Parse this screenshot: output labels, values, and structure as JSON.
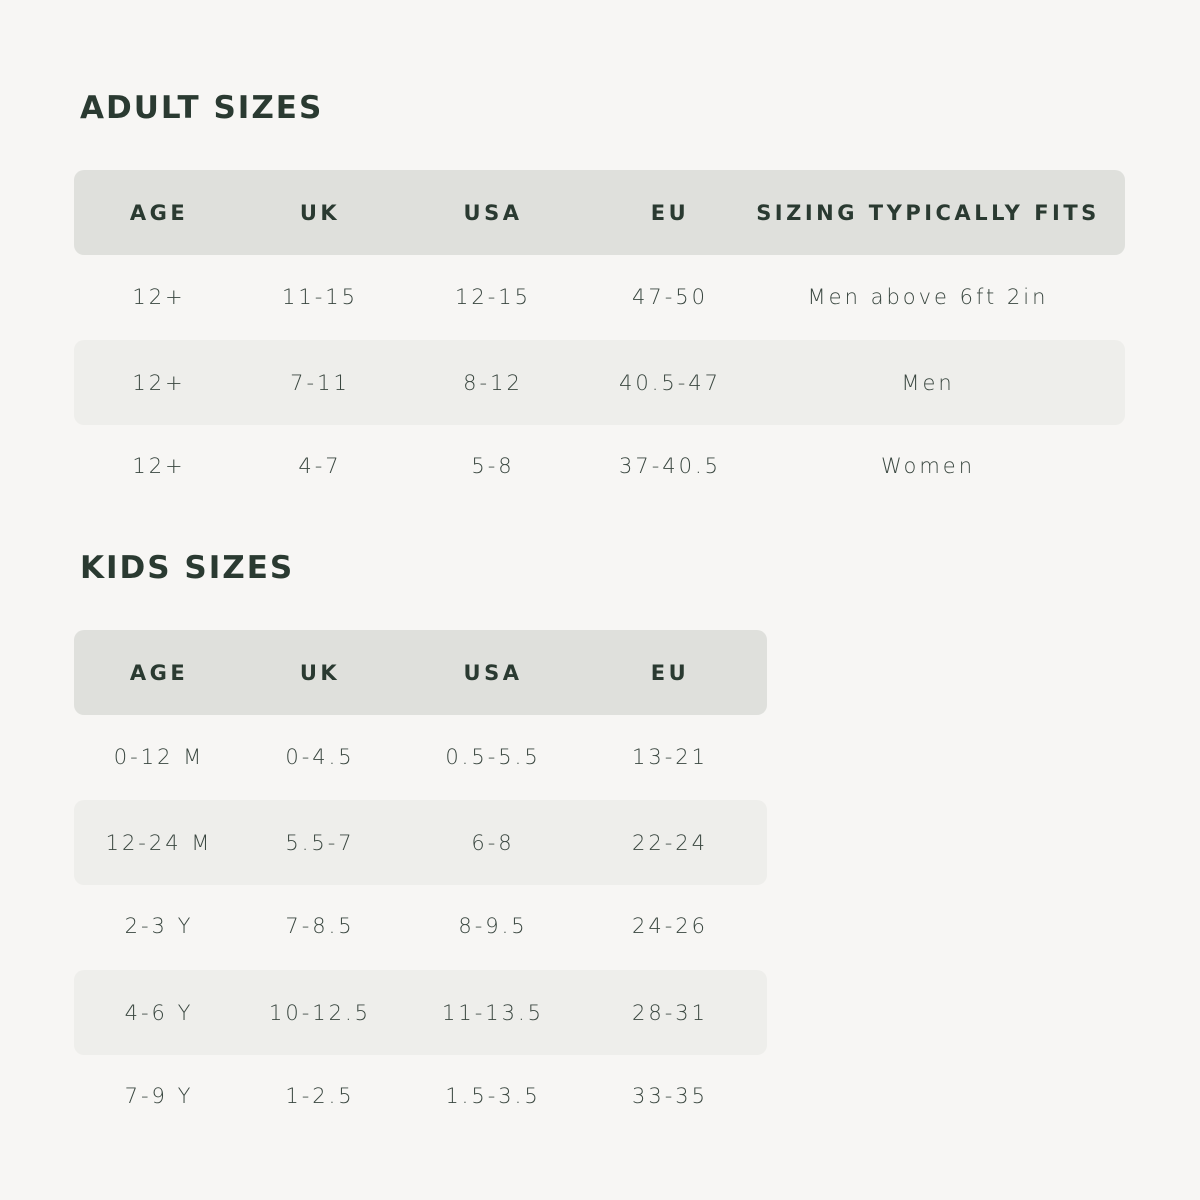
{
  "adult": {
    "title": "ADULT SIZES",
    "headers": [
      "AGE",
      "UK",
      "USA",
      "EU",
      "SIZING TYPICALLY FITS"
    ],
    "rows": [
      [
        "12+",
        "11-15",
        "12-15",
        "47-50",
        "Men above 6ft 2in"
      ],
      [
        "12+",
        "7-11",
        "8-12",
        "40.5-47",
        "Men"
      ],
      [
        "12+",
        "4-7",
        "5-8",
        "37-40.5",
        "Women"
      ]
    ]
  },
  "kids": {
    "title": "KIDS SIZES",
    "headers": [
      "AGE",
      "UK",
      "USA",
      "EU"
    ],
    "rows": [
      [
        "0-12 M",
        "0-4.5",
        "0.5-5.5",
        "13-21"
      ],
      [
        "12-24 M",
        "5.5-7",
        "6-8",
        "22-24"
      ],
      [
        "2-3 Y",
        "7-8.5",
        "8-9.5",
        "24-26"
      ],
      [
        "4-6 Y",
        "10-12.5",
        "11-13.5",
        "28-31"
      ],
      [
        "7-9 Y",
        "1-2.5",
        "1.5-3.5",
        "33-35"
      ]
    ]
  },
  "colors": {
    "background": "#f7f6f4",
    "header": "#dfe0dc",
    "stripe": "#eeeeeb",
    "text": "#2c3a32"
  }
}
